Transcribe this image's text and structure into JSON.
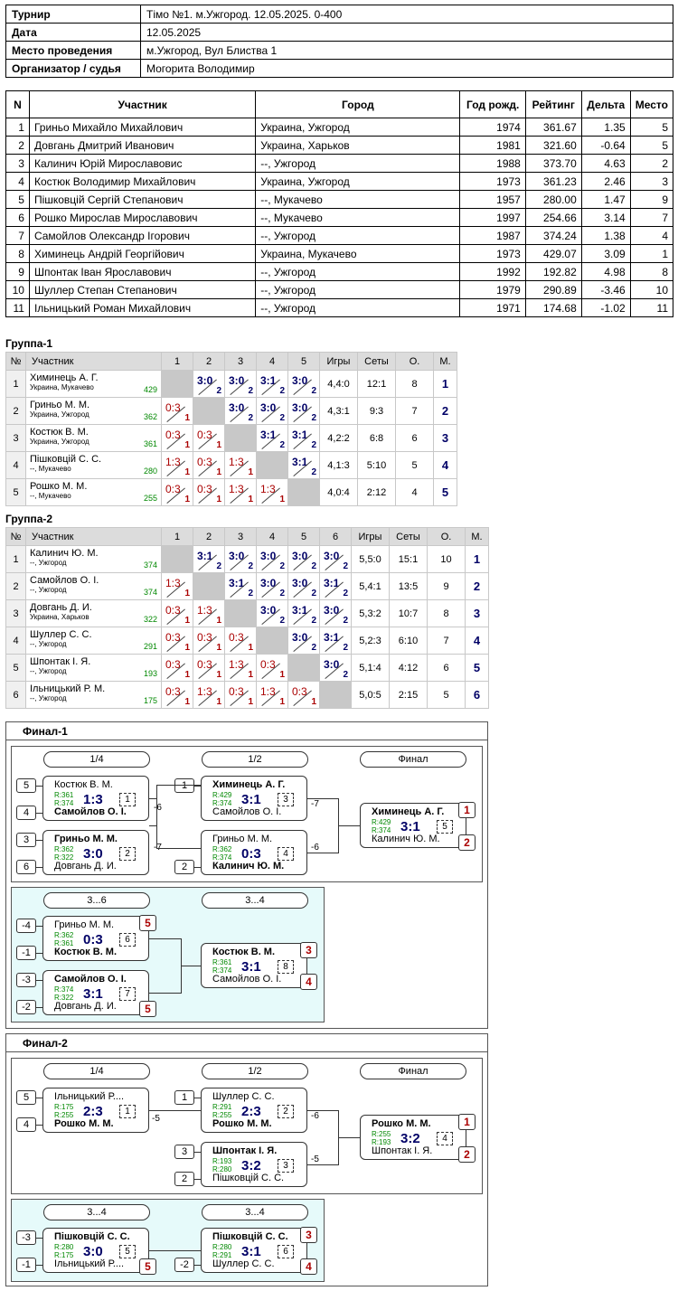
{
  "info": [
    {
      "k": "Турнир",
      "v": "Тімо №1. м.Ужгород. 12.05.2025. 0-400"
    },
    {
      "k": "Дата",
      "v": "12.05.2025"
    },
    {
      "k": "Место проведения",
      "v": "м.Ужгород, Вул Блиства 1"
    },
    {
      "k": "Организатор / судья",
      "v": "Могорита Володимир"
    }
  ],
  "participants_headers": [
    "N",
    "Участник",
    "Город",
    "Год рожд.",
    "Рейтинг",
    "Дельта",
    "Место"
  ],
  "participants": [
    [
      "1",
      "Гриньо Михайло Михайлович",
      "Украина, Ужгород",
      "1974",
      "361.67",
      "1.35",
      "5"
    ],
    [
      "2",
      "Довгань Дмитрий Иванович",
      "Украина, Харьков",
      "1981",
      "321.60",
      "-0.64",
      "5"
    ],
    [
      "3",
      "Калинич Юрій Мирославовис",
      "--, Ужгород",
      "1988",
      "373.70",
      "4.63",
      "2"
    ],
    [
      "4",
      "Костюк Володимир Михайлович",
      "Украина, Ужгород",
      "1973",
      "361.23",
      "2.46",
      "3"
    ],
    [
      "5",
      "Пішковцій Сергій Степанович",
      "--, Мукачево",
      "1957",
      "280.00",
      "1.47",
      "9"
    ],
    [
      "6",
      "Рошко Мирослав Мирославович",
      "--, Мукачево",
      "1997",
      "254.66",
      "3.14",
      "7"
    ],
    [
      "7",
      "Самойлов Олександр Ігорович",
      "--, Ужгород",
      "1987",
      "374.24",
      "1.38",
      "4"
    ],
    [
      "8",
      "Химинець Андрій Георгійович",
      "Украина, Мукачево",
      "1973",
      "429.07",
      "3.09",
      "1"
    ],
    [
      "9",
      "Шпонтак Іван Ярославович",
      "--, Ужгород",
      "1992",
      "192.82",
      "4.98",
      "8"
    ],
    [
      "10",
      "Шуллер Степан Степанович",
      "--, Ужгород",
      "1979",
      "290.89",
      "-3.46",
      "10"
    ],
    [
      "11",
      "Ільницький Роман Михайлович",
      "--, Ужгород",
      "1971",
      "174.68",
      "-1.02",
      "11"
    ]
  ],
  "group_headers": {
    "num": "№",
    "player": "Участник",
    "games": "Игры",
    "sets": "Сеты",
    "o": "О.",
    "m": "М."
  },
  "group1": {
    "title": "Группа-1",
    "cols": [
      "1",
      "2",
      "3",
      "4",
      "5"
    ],
    "rows": [
      {
        "n": "1",
        "name": "Химинець А. Г.",
        "city": "Украина, Мукачево",
        "rating": "429",
        "cells": [
          "",
          "3:0|2|w",
          "3:0|2|w",
          "3:1|2|w",
          "3:0|2|w"
        ],
        "games": "4,4:0",
        "sets": "12:1",
        "o": "8",
        "m": "1"
      },
      {
        "n": "2",
        "name": "Гриньо М. М.",
        "city": "Украина, Ужгород",
        "rating": "362",
        "cells": [
          "0:3|1|l",
          "",
          "3:0|2|w",
          "3:0|2|w",
          "3:0|2|w"
        ],
        "games": "4,3:1",
        "sets": "9:3",
        "o": "7",
        "m": "2"
      },
      {
        "n": "3",
        "name": "Костюк В. М.",
        "city": "Украина, Ужгород",
        "rating": "361",
        "cells": [
          "0:3|1|l",
          "0:3|1|l",
          "",
          "3:1|2|w",
          "3:1|2|w"
        ],
        "games": "4,2:2",
        "sets": "6:8",
        "o": "6",
        "m": "3"
      },
      {
        "n": "4",
        "name": "Пішковцій С. С.",
        "city": "--, Мукачево",
        "rating": "280",
        "cells": [
          "1:3|1|l",
          "0:3|1|l",
          "1:3|1|l",
          "",
          "3:1|2|w"
        ],
        "games": "4,1:3",
        "sets": "5:10",
        "o": "5",
        "m": "4"
      },
      {
        "n": "5",
        "name": "Рошко М. М.",
        "city": "--, Мукачево",
        "rating": "255",
        "cells": [
          "0:3|1|l",
          "0:3|1|l",
          "1:3|1|l",
          "1:3|1|l",
          ""
        ],
        "games": "4,0:4",
        "sets": "2:12",
        "o": "4",
        "m": "5"
      }
    ]
  },
  "group2": {
    "title": "Группа-2",
    "cols": [
      "1",
      "2",
      "3",
      "4",
      "5",
      "6"
    ],
    "rows": [
      {
        "n": "1",
        "name": "Калинич Ю. М.",
        "city": "--, Ужгород",
        "rating": "374",
        "cells": [
          "",
          "3:1|2|w",
          "3:0|2|w",
          "3:0|2|w",
          "3:0|2|w",
          "3:0|2|w"
        ],
        "games": "5,5:0",
        "sets": "15:1",
        "o": "10",
        "m": "1"
      },
      {
        "n": "2",
        "name": "Самойлов О. І.",
        "city": "--, Ужгород",
        "rating": "374",
        "cells": [
          "1:3|1|l",
          "",
          "3:1|2|w",
          "3:0|2|w",
          "3:0|2|w",
          "3:1|2|w"
        ],
        "games": "5,4:1",
        "sets": "13:5",
        "o": "9",
        "m": "2"
      },
      {
        "n": "3",
        "name": "Довгань Д. И.",
        "city": "Украина, Харьков",
        "rating": "322",
        "cells": [
          "0:3|1|l",
          "1:3|1|l",
          "",
          "3:0|2|w",
          "3:1|2|w",
          "3:0|2|w"
        ],
        "games": "5,3:2",
        "sets": "10:7",
        "o": "8",
        "m": "3"
      },
      {
        "n": "4",
        "name": "Шуллер С. С.",
        "city": "--, Ужгород",
        "rating": "291",
        "cells": [
          "0:3|1|l",
          "0:3|1|l",
          "0:3|1|l",
          "",
          "3:0|2|w",
          "3:1|2|w"
        ],
        "games": "5,2:3",
        "sets": "6:10",
        "o": "7",
        "m": "4"
      },
      {
        "n": "5",
        "name": "Шпонтак І. Я.",
        "city": "--, Ужгород",
        "rating": "193",
        "cells": [
          "0:3|1|l",
          "0:3|1|l",
          "1:3|1|l",
          "0:3|1|l",
          "",
          "3:0|2|w"
        ],
        "games": "5,1:4",
        "sets": "4:12",
        "o": "6",
        "m": "5"
      },
      {
        "n": "6",
        "name": "Ільницький Р. М.",
        "city": "--, Ужгород",
        "rating": "175",
        "cells": [
          "0:3|1|l",
          "1:3|1|l",
          "0:3|1|l",
          "1:3|1|l",
          "0:3|1|l",
          ""
        ],
        "games": "5,0:5",
        "sets": "2:15",
        "o": "5",
        "m": "6"
      }
    ]
  },
  "final1": {
    "title": "Финал-1",
    "rounds": {
      "q": "1/4",
      "s": "1/2",
      "f": "Финал",
      "c1": "3...6",
      "c2": "3...4"
    },
    "seeds": [
      "5",
      "4",
      "3",
      "6",
      "1",
      "2",
      "-4",
      "-1",
      "-3",
      "-2"
    ],
    "matches": [
      {
        "p1": "Костюк В. М.",
        "p2": "Самойлов О. І.",
        "r1": "R:361",
        "r2": "R:374",
        "score": "1:3",
        "no": "1",
        "bold": 2,
        "loss": "-6"
      },
      {
        "p1": "Гриньо М. М.",
        "p2": "Довгань Д. И.",
        "r1": "R:362",
        "r2": "R:322",
        "score": "3:0",
        "no": "2",
        "bold": 1,
        "loss": "-7"
      },
      {
        "p1": "Химинець А. Г.",
        "p2": "Самойлов О. І.",
        "r1": "R:429",
        "r2": "R:374",
        "score": "3:1",
        "no": "3",
        "bold": 1,
        "loss": "-7"
      },
      {
        "p1": "Гриньо М. М.",
        "p2": "Калинич Ю. М.",
        "r1": "R:362",
        "r2": "R:374",
        "score": "0:3",
        "no": "4",
        "bold": 2,
        "loss": "-6"
      },
      {
        "p1": "Химинець А. Г.",
        "p2": "Калинич Ю. М.",
        "r1": "R:429",
        "r2": "R:374",
        "score": "3:1",
        "no": "5",
        "bold": 1,
        "loss": ""
      },
      {
        "p1": "Гриньо М. М.",
        "p2": "Костюк В. М.",
        "r1": "R:362",
        "r2": "R:361",
        "score": "0:3",
        "no": "6",
        "bold": 2,
        "loss": ""
      },
      {
        "p1": "Самойлов О. І.",
        "p2": "Довгань Д. И.",
        "r1": "R:374",
        "r2": "R:322",
        "score": "3:1",
        "no": "7",
        "bold": 1,
        "loss": ""
      },
      {
        "p1": "Костюк В. М.",
        "p2": "Самойлов О. І.",
        "r1": "R:361",
        "r2": "R:374",
        "score": "3:1",
        "no": "8",
        "bold": 1,
        "loss": ""
      }
    ],
    "places": [
      "1",
      "2",
      "5",
      "5",
      "3",
      "4"
    ]
  },
  "final2": {
    "title": "Финал-2",
    "rounds": {
      "q": "1/4",
      "s": "1/2",
      "f": "Финал",
      "c1": "3...4",
      "c2": "3...4"
    },
    "seeds": [
      "5",
      "4",
      "1",
      "3",
      "2",
      "-3",
      "-1",
      "-2"
    ],
    "matches": [
      {
        "p1": "Ільницький Р....",
        "p2": "Рошко М. М.",
        "r1": "R:175",
        "r2": "R:255",
        "score": "2:3",
        "no": "1",
        "bold": 2,
        "loss": "-5"
      },
      {
        "p1": "Шуллер С. С.",
        "p2": "Рошко М. М.",
        "r1": "R:291",
        "r2": "R:255",
        "score": "2:3",
        "no": "2",
        "bold": 2,
        "loss": "-6"
      },
      {
        "p1": "Шпонтак І. Я.",
        "p2": "Пішковцій С. С.",
        "r1": "R:193",
        "r2": "R:280",
        "score": "3:2",
        "no": "3",
        "bold": 1,
        "loss": "-5"
      },
      {
        "p1": "Рошко М. М.",
        "p2": "Шпонтак І. Я.",
        "r1": "R:255",
        "r2": "R:193",
        "score": "3:2",
        "no": "4",
        "bold": 1,
        "loss": ""
      },
      {
        "p1": "Пішковцій С. С.",
        "p2": "Ільницький Р....",
        "r1": "R:280",
        "r2": "R:175",
        "score": "3:0",
        "no": "5",
        "bold": 1,
        "loss": ""
      },
      {
        "p1": "Пішковцій С. С.",
        "p2": "Шуллер С. С.",
        "r1": "R:280",
        "r2": "R:291",
        "score": "3:1",
        "no": "6",
        "bold": 1,
        "loss": ""
      }
    ],
    "places": [
      "1",
      "2",
      "5",
      "3",
      "4"
    ]
  }
}
